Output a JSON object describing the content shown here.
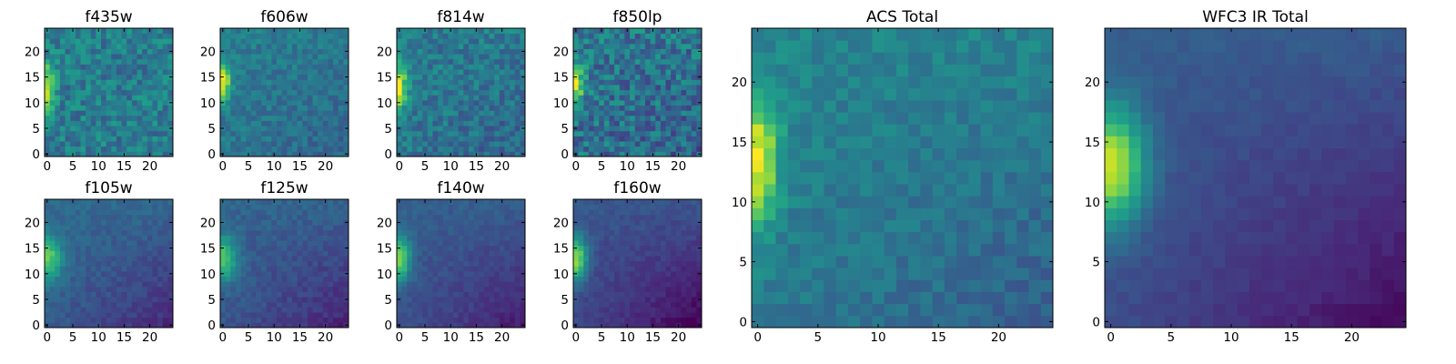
{
  "colors": {
    "viridis": [
      "#440154",
      "#482878",
      "#3e4989",
      "#31688e",
      "#26828e",
      "#1f9e89",
      "#35b779",
      "#6ece58",
      "#b5de2b",
      "#fde725"
    ],
    "frame": "#000000",
    "background": "#ffffff"
  },
  "chart_data": [
    {
      "type": "heatmap",
      "title": "f435w",
      "xlabel": "",
      "ylabel": "",
      "xlim": [
        0,
        25
      ],
      "ylim": [
        0,
        25
      ],
      "xticks": [
        0,
        5,
        10,
        15,
        20
      ],
      "yticks": [
        0,
        5,
        10,
        15,
        20
      ],
      "tick_labels_x": [
        "0",
        "5",
        "10",
        "15",
        "20"
      ],
      "tick_labels_y": [
        "0",
        "5",
        "10",
        "15",
        "20"
      ],
      "colormap": "viridis",
      "value_range": [
        0,
        1
      ],
      "pattern": {
        "bg": 0.42,
        "noise": 0.28,
        "spot_y": 13,
        "spot_x": 0,
        "spot_amp": 0.5,
        "spot_ry": 3,
        "spot_rx": 1.2,
        "grad": 0.0,
        "seed": 11
      }
    },
    {
      "type": "heatmap",
      "title": "f606w",
      "xlabel": "",
      "ylabel": "",
      "xlim": [
        0,
        25
      ],
      "ylim": [
        0,
        25
      ],
      "xticks": [
        0,
        5,
        10,
        15,
        20
      ],
      "yticks": [
        0,
        5,
        10,
        15,
        20
      ],
      "tick_labels_x": [
        "0",
        "5",
        "10",
        "15",
        "20"
      ],
      "tick_labels_y": [
        "0",
        "5",
        "10",
        "15",
        "20"
      ],
      "colormap": "viridis",
      "value_range": [
        0,
        1
      ],
      "pattern": {
        "bg": 0.4,
        "noise": 0.18,
        "spot_y": 14,
        "spot_x": 0,
        "spot_amp": 0.6,
        "spot_ry": 2.5,
        "spot_rx": 1.0,
        "grad": 0.05,
        "seed": 23
      }
    },
    {
      "type": "heatmap",
      "title": "f814w",
      "xlabel": "",
      "ylabel": "",
      "xlim": [
        0,
        25
      ],
      "ylim": [
        0,
        25
      ],
      "xticks": [
        0,
        5,
        10,
        15,
        20
      ],
      "yticks": [
        0,
        5,
        10,
        15,
        20
      ],
      "tick_labels_x": [
        "0",
        "5",
        "10",
        "15",
        "20"
      ],
      "tick_labels_y": [
        "0",
        "5",
        "10",
        "15",
        "20"
      ],
      "colormap": "viridis",
      "value_range": [
        0,
        1
      ],
      "pattern": {
        "bg": 0.4,
        "noise": 0.24,
        "spot_y": 13,
        "spot_x": 0,
        "spot_amp": 0.55,
        "spot_ry": 3,
        "spot_rx": 1.0,
        "grad": 0.05,
        "seed": 37
      }
    },
    {
      "type": "heatmap",
      "title": "f850lp",
      "xlabel": "",
      "ylabel": "",
      "xlim": [
        0,
        25
      ],
      "ylim": [
        0,
        25
      ],
      "xticks": [
        0,
        5,
        10,
        15,
        20
      ],
      "yticks": [
        0,
        5,
        10,
        15,
        20
      ],
      "tick_labels_x": [
        "0",
        "5",
        "10",
        "15",
        "20"
      ],
      "tick_labels_y": [
        "0",
        "5",
        "10",
        "15",
        "20"
      ],
      "colormap": "viridis",
      "value_range": [
        0,
        1
      ],
      "pattern": {
        "bg": 0.38,
        "noise": 0.34,
        "spot_y": 14,
        "spot_x": 0,
        "spot_amp": 0.55,
        "spot_ry": 3,
        "spot_rx": 1.0,
        "grad": 0.05,
        "seed": 41
      }
    },
    {
      "type": "heatmap",
      "title": "f105w",
      "xlabel": "",
      "ylabel": "",
      "xlim": [
        0,
        25
      ],
      "ylim": [
        0,
        25
      ],
      "xticks": [
        0,
        5,
        10,
        15,
        20
      ],
      "yticks": [
        0,
        5,
        10,
        15,
        20
      ],
      "tick_labels_x": [
        "0",
        "5",
        "10",
        "15",
        "20"
      ],
      "tick_labels_y": [
        "0",
        "5",
        "10",
        "15",
        "20"
      ],
      "colormap": "viridis",
      "value_range": [
        0,
        1
      ],
      "pattern": {
        "bg": 0.3,
        "noise": 0.1,
        "spot_y": 13,
        "spot_x": 0,
        "spot_amp": 0.45,
        "spot_ry": 3,
        "spot_rx": 2.0,
        "grad": 0.12,
        "seed": 53
      }
    },
    {
      "type": "heatmap",
      "title": "f125w",
      "xlabel": "",
      "ylabel": "",
      "xlim": [
        0,
        25
      ],
      "ylim": [
        0,
        25
      ],
      "xticks": [
        0,
        5,
        10,
        15,
        20
      ],
      "yticks": [
        0,
        5,
        10,
        15,
        20
      ],
      "tick_labels_x": [
        "0",
        "5",
        "10",
        "15",
        "20"
      ],
      "tick_labels_y": [
        "0",
        "5",
        "10",
        "15",
        "20"
      ],
      "colormap": "viridis",
      "value_range": [
        0,
        1
      ],
      "pattern": {
        "bg": 0.28,
        "noise": 0.1,
        "spot_y": 13,
        "spot_x": 0,
        "spot_amp": 0.45,
        "spot_ry": 3,
        "spot_rx": 2.0,
        "grad": 0.12,
        "seed": 67
      }
    },
    {
      "type": "heatmap",
      "title": "f140w",
      "xlabel": "",
      "ylabel": "",
      "xlim": [
        0,
        25
      ],
      "ylim": [
        0,
        25
      ],
      "xticks": [
        0,
        5,
        10,
        15,
        20
      ],
      "yticks": [
        0,
        5,
        10,
        15,
        20
      ],
      "tick_labels_x": [
        "0",
        "5",
        "10",
        "15",
        "20"
      ],
      "tick_labels_y": [
        "0",
        "5",
        "10",
        "15",
        "20"
      ],
      "colormap": "viridis",
      "value_range": [
        0,
        1
      ],
      "pattern": {
        "bg": 0.26,
        "noise": 0.08,
        "spot_y": 13,
        "spot_x": 0,
        "spot_amp": 0.55,
        "spot_ry": 3,
        "spot_rx": 1.5,
        "grad": 0.12,
        "seed": 79
      }
    },
    {
      "type": "heatmap",
      "title": "f160w",
      "xlabel": "",
      "ylabel": "",
      "xlim": [
        0,
        25
      ],
      "ylim": [
        0,
        25
      ],
      "xticks": [
        0,
        5,
        10,
        15,
        20
      ],
      "yticks": [
        0,
        5,
        10,
        15,
        20
      ],
      "tick_labels_x": [
        "0",
        "5",
        "10",
        "15",
        "20"
      ],
      "tick_labels_y": [
        "0",
        "5",
        "10",
        "15",
        "20"
      ],
      "colormap": "viridis",
      "value_range": [
        0,
        1
      ],
      "pattern": {
        "bg": 0.22,
        "noise": 0.08,
        "spot_y": 13,
        "spot_x": 0,
        "spot_amp": 0.6,
        "spot_ry": 3,
        "spot_rx": 1.5,
        "grad": 0.14,
        "seed": 83
      }
    },
    {
      "type": "heatmap",
      "title": "ACS Total",
      "xlabel": "",
      "ylabel": "",
      "xlim": [
        0,
        25
      ],
      "ylim": [
        0,
        25
      ],
      "xticks": [
        0,
        5,
        10,
        15,
        20
      ],
      "yticks": [
        0,
        5,
        10,
        15,
        20
      ],
      "tick_labels_x": [
        "0",
        "5",
        "10",
        "15",
        "20"
      ],
      "tick_labels_y": [
        "0",
        "5",
        "10",
        "15",
        "20"
      ],
      "colormap": "viridis",
      "value_range": [
        0,
        1
      ],
      "pattern": {
        "bg": 0.42,
        "noise": 0.14,
        "spot_y": 13.5,
        "spot_x": 0,
        "spot_amp": 0.55,
        "spot_ry": 3.5,
        "spot_rx": 1.2,
        "grad": 0.08,
        "seed": 97
      }
    },
    {
      "type": "heatmap",
      "title": "WFC3 IR Total",
      "xlabel": "",
      "ylabel": "",
      "xlim": [
        0,
        25
      ],
      "ylim": [
        0,
        25
      ],
      "xticks": [
        0,
        5,
        10,
        15,
        20
      ],
      "yticks": [
        0,
        5,
        10,
        15,
        20
      ],
      "tick_labels_x": [
        "0",
        "5",
        "10",
        "15",
        "20"
      ],
      "tick_labels_y": [
        "0",
        "5",
        "10",
        "15",
        "20"
      ],
      "colormap": "viridis",
      "value_range": [
        0,
        1
      ],
      "pattern": {
        "bg": 0.24,
        "noise": 0.05,
        "spot_y": 13,
        "spot_x": 0,
        "spot_amp": 0.65,
        "spot_ry": 3.5,
        "spot_rx": 2.0,
        "grad": 0.14,
        "seed": 101
      }
    }
  ]
}
